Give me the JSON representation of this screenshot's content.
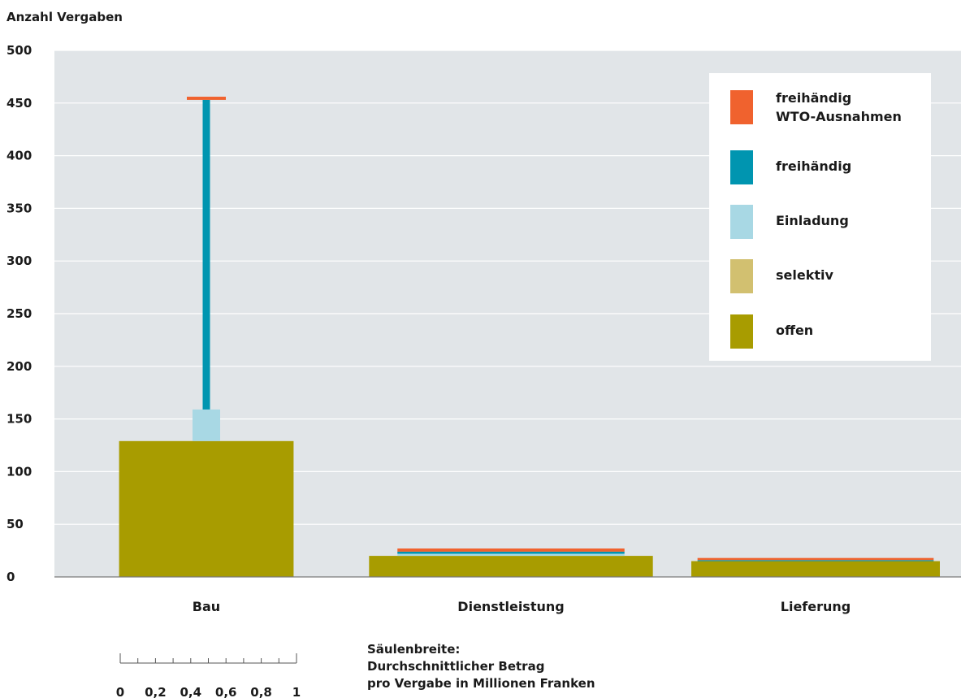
{
  "chart_data": {
    "type": "bar",
    "ylabel": "Anzahl Vergaben",
    "ylim": [
      0,
      500
    ],
    "yticks": [
      "0",
      "50",
      "100",
      "150",
      "200",
      "250",
      "300",
      "350",
      "400",
      "450",
      "500"
    ],
    "grid": true,
    "legend_position": "top-right",
    "categories": [
      "Bau",
      "Dienstleistung",
      "Lieferung"
    ],
    "widths_mio_chf": [
      0.99,
      1.61,
      1.41
    ],
    "series": [
      {
        "name": "offen",
        "color": "#a89c00",
        "values": [
          129,
          20,
          15
        ]
      },
      {
        "name": "selektiv",
        "color": "#d2c070",
        "values": [
          0,
          0,
          0
        ]
      },
      {
        "name": "Einladung",
        "color": "#a8d8e4",
        "values": [
          30,
          2,
          0
        ]
      },
      {
        "name": "freihändig",
        "color": "#0095b0",
        "values": [
          294,
          2,
          1
        ]
      },
      {
        "name": "freihändig WTO-Ausnahmen",
        "color": "#f0622e",
        "values": [
          3,
          3,
          2
        ]
      }
    ],
    "legend": {
      "entries": [
        {
          "lines": [
            "freihändig",
            "WTO-Ausnahmen"
          ],
          "color": "#f0622e"
        },
        {
          "lines": [
            "freihändig"
          ],
          "color": "#0095b0"
        },
        {
          "lines": [
            "Einladung"
          ],
          "color": "#a8d8e4"
        },
        {
          "lines": [
            "selektiv"
          ],
          "color": "#d2c070"
        },
        {
          "lines": [
            "offen"
          ],
          "color": "#a89c00"
        }
      ]
    },
    "scale": {
      "ticks": [
        "0",
        "0,2",
        "0,4",
        "0,6",
        "0,8",
        "1"
      ]
    }
  },
  "note": {
    "line1": "Säulenbreite:",
    "line2": "Durchschnittlicher Betrag",
    "line3": "pro Vergabe in Millionen Franken"
  },
  "colors": {
    "plot_background": "#e1e5e8",
    "gridline": "#ffffff"
  }
}
